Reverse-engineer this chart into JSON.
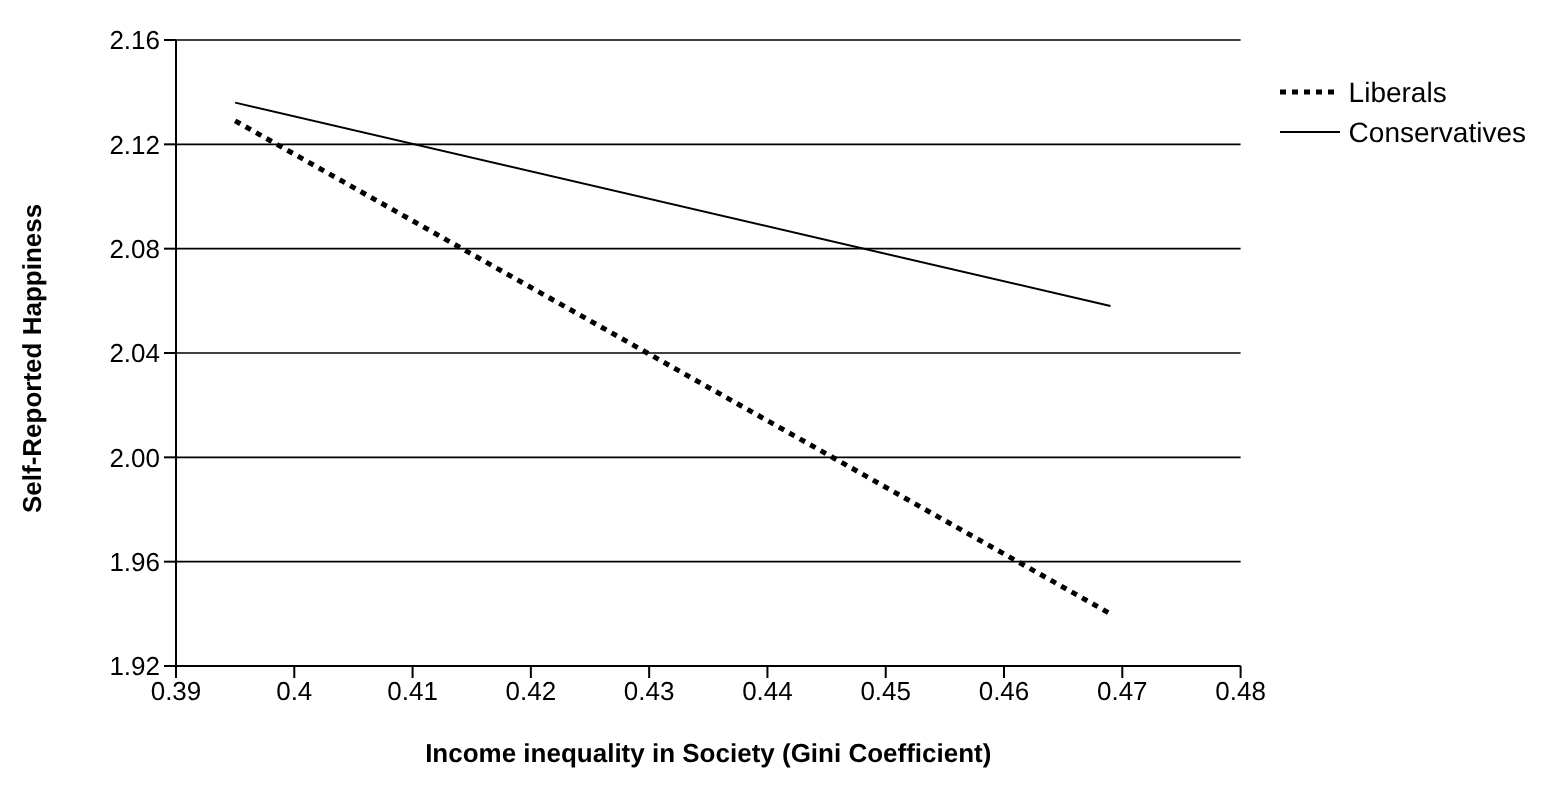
{
  "chart_data": {
    "type": "line",
    "xlabel": "Income inequality in Society (Gini Coefficient)",
    "ylabel": "Self-Reported Happiness",
    "x": [
      0.395,
      0.469
    ],
    "series": [
      {
        "name": "Liberals",
        "color": "#000000",
        "values": [
          2.129,
          1.94
        ],
        "line_style": "dotted"
      },
      {
        "name": "Conservatives",
        "color": "#000000",
        "values": [
          2.136,
          2.058
        ],
        "line_style": "solid"
      }
    ],
    "xlim": [
      0.39,
      0.48
    ],
    "xticks": [
      0.39,
      0.4,
      0.41,
      0.42,
      0.43,
      0.44,
      0.45,
      0.46,
      0.47,
      0.48
    ],
    "ylim": [
      1.92,
      2.16
    ],
    "yticks": [
      1.92,
      1.96,
      {
        "value": 2.0,
        "label": "2.00"
      },
      2.04,
      2.08,
      2.12,
      2.16
    ],
    "grid": "y",
    "legend": "right",
    "marker": "none"
  }
}
